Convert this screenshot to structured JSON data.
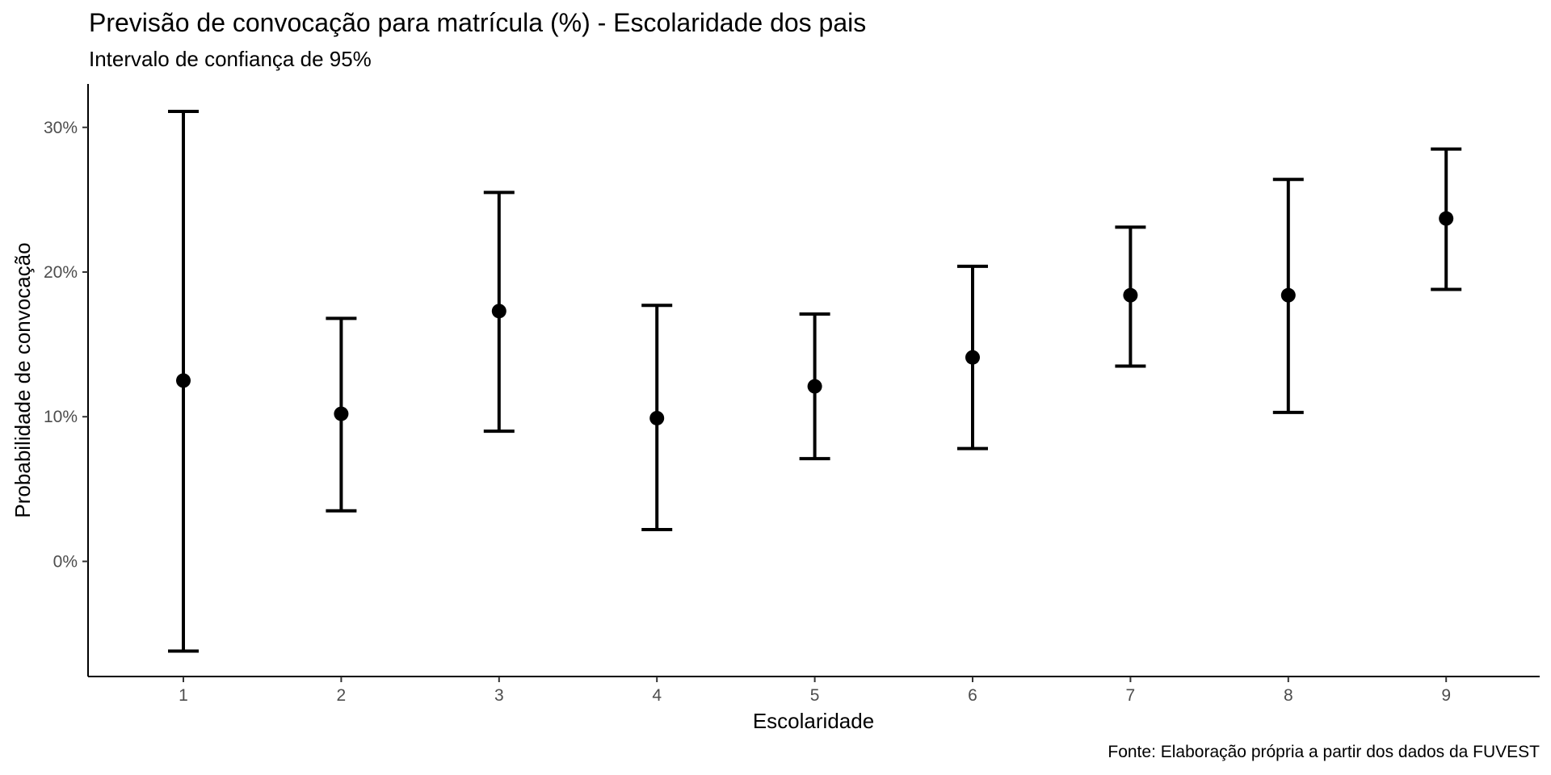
{
  "chart_data": {
    "type": "errorbar",
    "title": "Previsão de convocação para matrícula (%) - Escolaridade dos pais",
    "subtitle": "Intervalo de confiança de 95%",
    "caption": "Fonte: Elaboração própria a partir dos dados da FUVEST",
    "xlabel": "Escolaridade",
    "ylabel": "Probabilidade de convocação",
    "categories": [
      "1",
      "2",
      "3",
      "4",
      "5",
      "6",
      "7",
      "8",
      "9"
    ],
    "points": [
      {
        "x": "1",
        "estimate": 12.5,
        "lower": -6.2,
        "upper": 31.1
      },
      {
        "x": "2",
        "estimate": 10.2,
        "lower": 3.5,
        "upper": 16.8
      },
      {
        "x": "3",
        "estimate": 17.3,
        "lower": 9.0,
        "upper": 25.5
      },
      {
        "x": "4",
        "estimate": 9.9,
        "lower": 2.2,
        "upper": 17.7
      },
      {
        "x": "5",
        "estimate": 12.1,
        "lower": 7.1,
        "upper": 17.1
      },
      {
        "x": "6",
        "estimate": 14.1,
        "lower": 7.8,
        "upper": 20.4
      },
      {
        "x": "7",
        "estimate": 18.4,
        "lower": 13.5,
        "upper": 23.1
      },
      {
        "x": "8",
        "estimate": 18.4,
        "lower": 10.3,
        "upper": 26.4
      },
      {
        "x": "9",
        "estimate": 23.7,
        "lower": 18.8,
        "upper": 28.5
      }
    ],
    "yticks": [
      0,
      10,
      20,
      30
    ],
    "ytick_labels": [
      "0%",
      "10%",
      "20%",
      "30%"
    ],
    "ylim": [
      -7.9,
      33.0
    ],
    "grid": false,
    "legend": "none",
    "color": "#000000"
  }
}
